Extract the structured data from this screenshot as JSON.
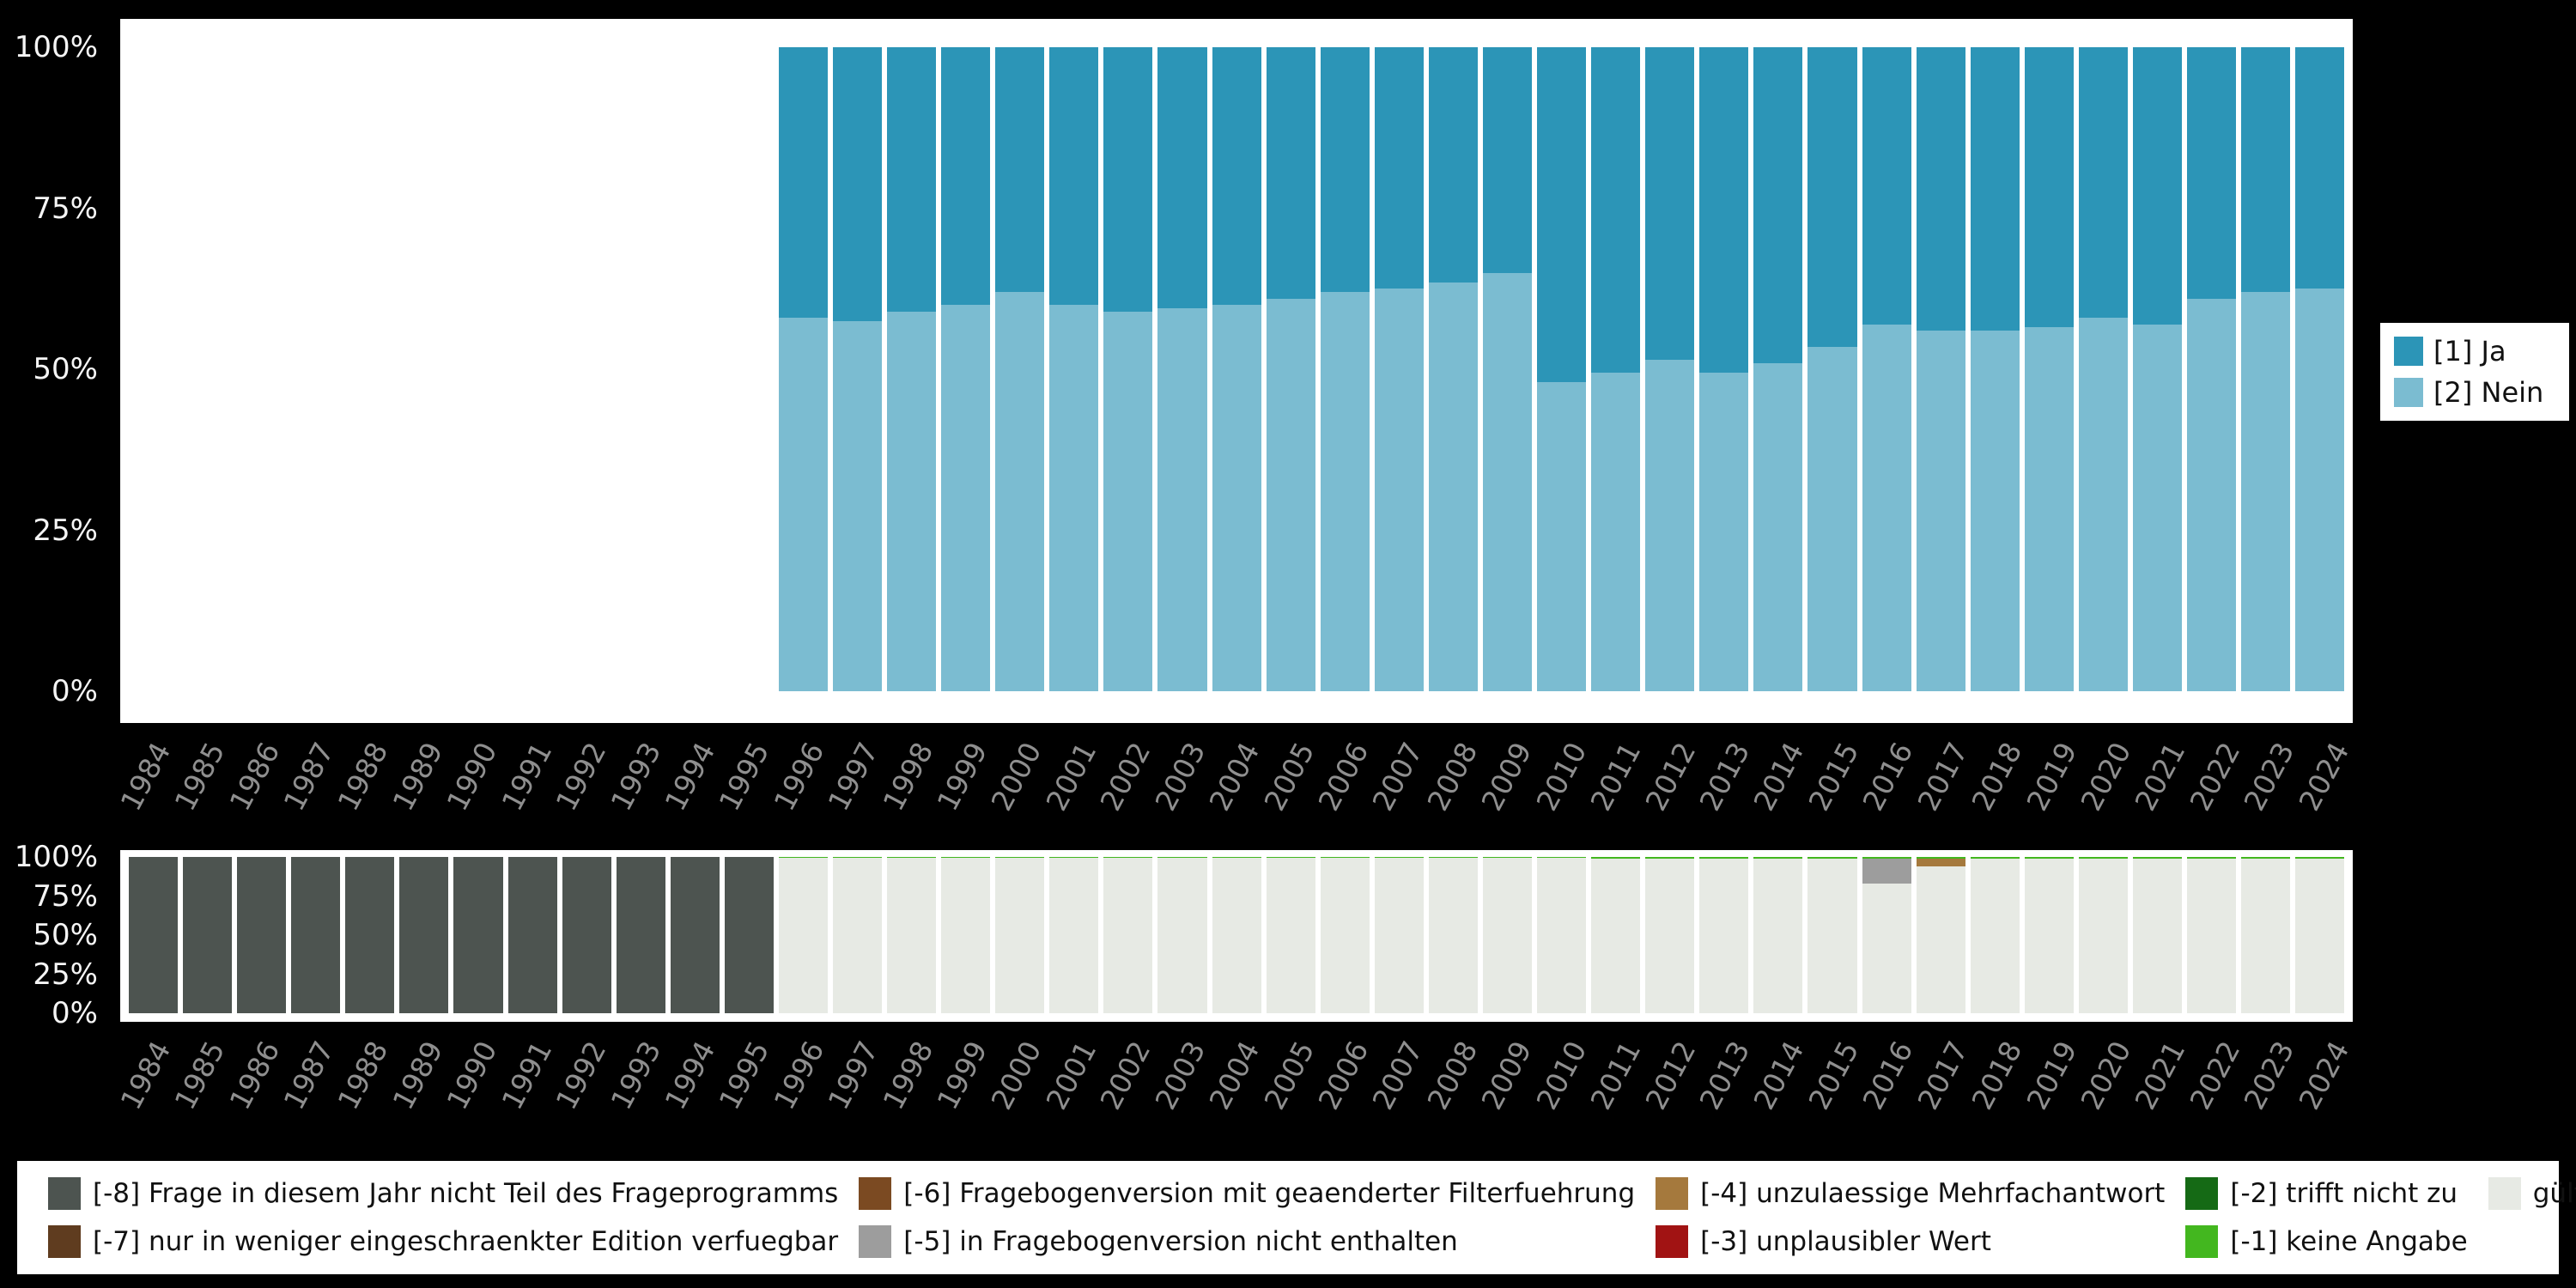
{
  "chart_data": [
    {
      "id": "top",
      "type": "bar",
      "stacked": true,
      "ylim": [
        0,
        100
      ],
      "y_ticks": [
        "0%",
        "25%",
        "50%",
        "75%",
        "100%"
      ],
      "categories": [
        "1984",
        "1985",
        "1986",
        "1987",
        "1988",
        "1989",
        "1990",
        "1991",
        "1992",
        "1993",
        "1994",
        "1995",
        "1996",
        "1997",
        "1998",
        "1999",
        "2000",
        "2001",
        "2002",
        "2003",
        "2004",
        "2005",
        "2006",
        "2007",
        "2008",
        "2009",
        "2010",
        "2011",
        "2012",
        "2013",
        "2014",
        "2015",
        "2016",
        "2017",
        "2018",
        "2019",
        "2020",
        "2021",
        "2022",
        "2023",
        "2024"
      ],
      "series": [
        {
          "label": "[2] Nein",
          "color": "#7bbcd1",
          "values": [
            null,
            null,
            null,
            null,
            null,
            null,
            null,
            null,
            null,
            null,
            null,
            null,
            58,
            57.5,
            59,
            60,
            62,
            60,
            59,
            59.5,
            60,
            61,
            62,
            62.5,
            63.5,
            65,
            48,
            49.5,
            51.5,
            49.5,
            51,
            53.5,
            57,
            56,
            56,
            56.5,
            58,
            57,
            61,
            62,
            62.5
          ]
        },
        {
          "label": "[1] Ja",
          "color": "#2c95b7",
          "values": [
            null,
            null,
            null,
            null,
            null,
            null,
            null,
            null,
            null,
            null,
            null,
            null,
            42,
            42.5,
            41,
            40,
            38,
            40,
            41,
            40.5,
            40,
            39,
            38,
            37.5,
            36.5,
            35,
            52,
            50.5,
            48.5,
            50.5,
            49,
            46.5,
            43,
            44,
            44,
            43.5,
            42,
            43,
            39,
            38,
            37.5
          ]
        }
      ],
      "legend": [
        {
          "label": "[1] Ja",
          "color": "#2c95b7"
        },
        {
          "label": "[2] Nein",
          "color": "#7bbcd1"
        }
      ],
      "legend_position": "right"
    },
    {
      "id": "bottom",
      "type": "bar",
      "stacked": true,
      "ylim": [
        0,
        100
      ],
      "y_ticks": [
        "0%",
        "25%",
        "50%",
        "75%",
        "100%"
      ],
      "categories": [
        "1984",
        "1985",
        "1986",
        "1987",
        "1988",
        "1989",
        "1990",
        "1991",
        "1992",
        "1993",
        "1994",
        "1995",
        "1996",
        "1997",
        "1998",
        "1999",
        "2000",
        "2001",
        "2002",
        "2003",
        "2004",
        "2005",
        "2006",
        "2007",
        "2008",
        "2009",
        "2010",
        "2011",
        "2012",
        "2013",
        "2014",
        "2015",
        "2016",
        "2017",
        "2018",
        "2019",
        "2020",
        "2021",
        "2022",
        "2023",
        "2024"
      ],
      "series": [
        {
          "label": "[-8] Frage in diesem Jahr nicht Teil des Frageprogramms",
          "color": "#4d5450",
          "values": [
            100,
            100,
            100,
            100,
            100,
            100,
            100,
            100,
            100,
            100,
            100,
            100,
            0,
            0,
            0,
            0,
            0,
            0,
            0,
            0,
            0,
            0,
            0,
            0,
            0,
            0,
            0,
            0,
            0,
            0,
            0,
            0,
            0,
            0,
            0,
            0,
            0,
            0,
            0,
            0,
            0
          ]
        },
        {
          "label": "gültige Observationen",
          "color": "#e7eae4",
          "values": [
            0,
            0,
            0,
            0,
            0,
            0,
            0,
            0,
            0,
            0,
            0,
            0,
            99.5,
            99.5,
            99.5,
            99.5,
            99.5,
            99.5,
            99.5,
            99.5,
            99.5,
            99.5,
            99.5,
            99.5,
            99.5,
            99.5,
            99.5,
            99,
            99,
            99,
            99,
            99,
            83,
            94,
            99,
            99,
            99,
            99,
            99,
            99,
            99
          ]
        },
        {
          "label": "[-5] in Fragebogenversion nicht enthalten",
          "color": "#9d9d9d",
          "values": [
            0,
            0,
            0,
            0,
            0,
            0,
            0,
            0,
            0,
            0,
            0,
            0,
            0,
            0,
            0,
            0,
            0,
            0,
            0,
            0,
            0,
            0,
            0,
            0,
            0,
            0,
            0,
            0,
            0,
            0,
            0,
            0,
            16,
            0,
            0,
            0,
            0,
            0,
            0,
            0,
            0
          ]
        },
        {
          "label": "[-4] unzulaessige Mehrfachantwort",
          "color": "#a5793d",
          "values": [
            0,
            0,
            0,
            0,
            0,
            0,
            0,
            0,
            0,
            0,
            0,
            0,
            0,
            0,
            0,
            0,
            0,
            0,
            0,
            0,
            0,
            0,
            0,
            0,
            0,
            0,
            0,
            0,
            0,
            0,
            0,
            0,
            0,
            5,
            0,
            0,
            0,
            0,
            0,
            0,
            0
          ]
        },
        {
          "label": "[-1] keine Angabe",
          "color": "#43b71f",
          "values": [
            0,
            0,
            0,
            0,
            0,
            0,
            0,
            0,
            0,
            0,
            0,
            0,
            0.5,
            0.5,
            0.5,
            0.5,
            0.5,
            0.5,
            0.5,
            0.5,
            0.5,
            0.5,
            0.5,
            0.5,
            0.5,
            0.5,
            0.5,
            1,
            1,
            1,
            1,
            1,
            1,
            1,
            1,
            1,
            1,
            1,
            1,
            1,
            1
          ]
        }
      ]
    }
  ],
  "bottom_legend": {
    "items": [
      {
        "label": "[-8] Frage in diesem Jahr nicht Teil des Frageprogramms",
        "color": "#4d5450"
      },
      {
        "label": "[-7] nur in weniger eingeschraenkter Edition verfuegbar",
        "color": "#5f3c1f"
      },
      {
        "label": "[-6] Fragebogenversion mit geaenderter Filterfuehrung",
        "color": "#7b4a22"
      },
      {
        "label": "[-5] in Fragebogenversion nicht enthalten",
        "color": "#9d9d9d"
      },
      {
        "label": "[-4] unzulaessige Mehrfachantwort",
        "color": "#a5793d"
      },
      {
        "label": "[-3] unplausibler Wert",
        "color": "#a11313"
      },
      {
        "label": "[-2] trifft nicht zu",
        "color": "#156a15"
      },
      {
        "label": "[-1] keine Angabe",
        "color": "#43b71f"
      },
      {
        "label": "gültige Observationen",
        "color": "#e7eae4"
      }
    ]
  },
  "colors": {
    "background": "#000000",
    "plot_background": "#ffffff",
    "y_tick_text": "#f5f5f5",
    "x_tick_text": "#8f8f8f"
  }
}
